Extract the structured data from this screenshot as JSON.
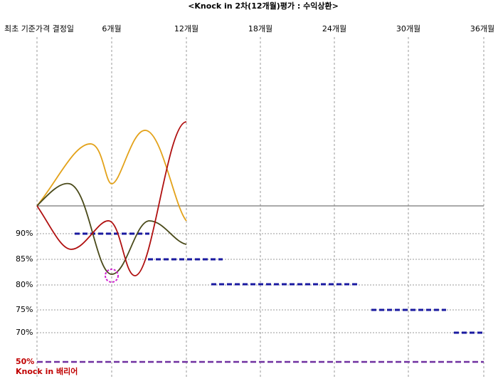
{
  "title": "<Knock in 2차(12개월)평가 : 수익상환>",
  "columns": [
    "최초 기준가격 결정일",
    "6개월",
    "12개월",
    "18개월",
    "24개월",
    "30개월",
    "36개월"
  ],
  "levels": [
    "90%",
    "85%",
    "80%",
    "75%",
    "70%",
    "50%"
  ],
  "barrier_label": "Knock in 배리어"
}
